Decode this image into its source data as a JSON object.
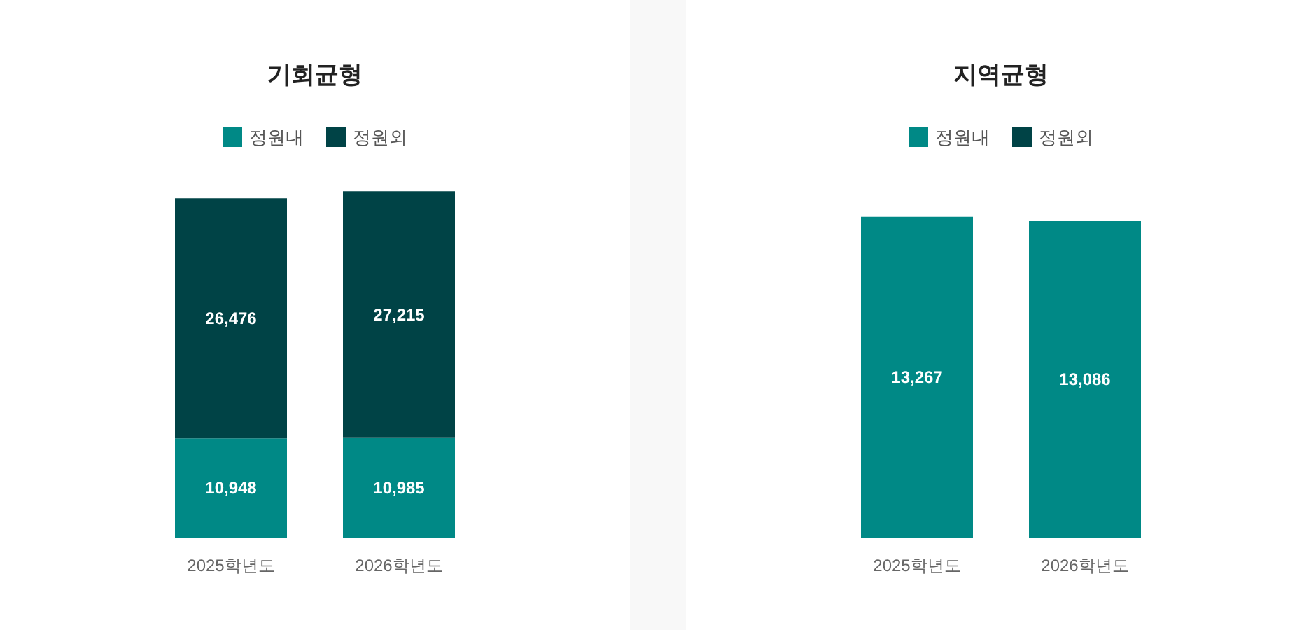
{
  "chart_data": [
    {
      "type": "bar",
      "title": "기회균형",
      "categories": [
        "2025학년도",
        "2026학년도"
      ],
      "stacked": true,
      "legend": "top",
      "series": [
        {
          "name": "정원내",
          "color": "#008986",
          "values": [
            10948,
            10985
          ],
          "value_labels": [
            "10,948",
            "10,985"
          ]
        },
        {
          "name": "정원외",
          "color": "#004346",
          "values": [
            26476,
            27215
          ],
          "value_labels": [
            "26,476",
            "27,215"
          ]
        }
      ]
    },
    {
      "type": "bar",
      "title": "지역균형",
      "categories": [
        "2025학년도",
        "2026학년도"
      ],
      "stacked": true,
      "legend": "top",
      "series": [
        {
          "name": "정원내",
          "color": "#008986",
          "values": [
            13267,
            13086
          ],
          "value_labels": [
            "13,267",
            "13,086"
          ]
        },
        {
          "name": "정원외",
          "color": "#004346",
          "values": [
            null,
            null
          ]
        }
      ]
    }
  ]
}
